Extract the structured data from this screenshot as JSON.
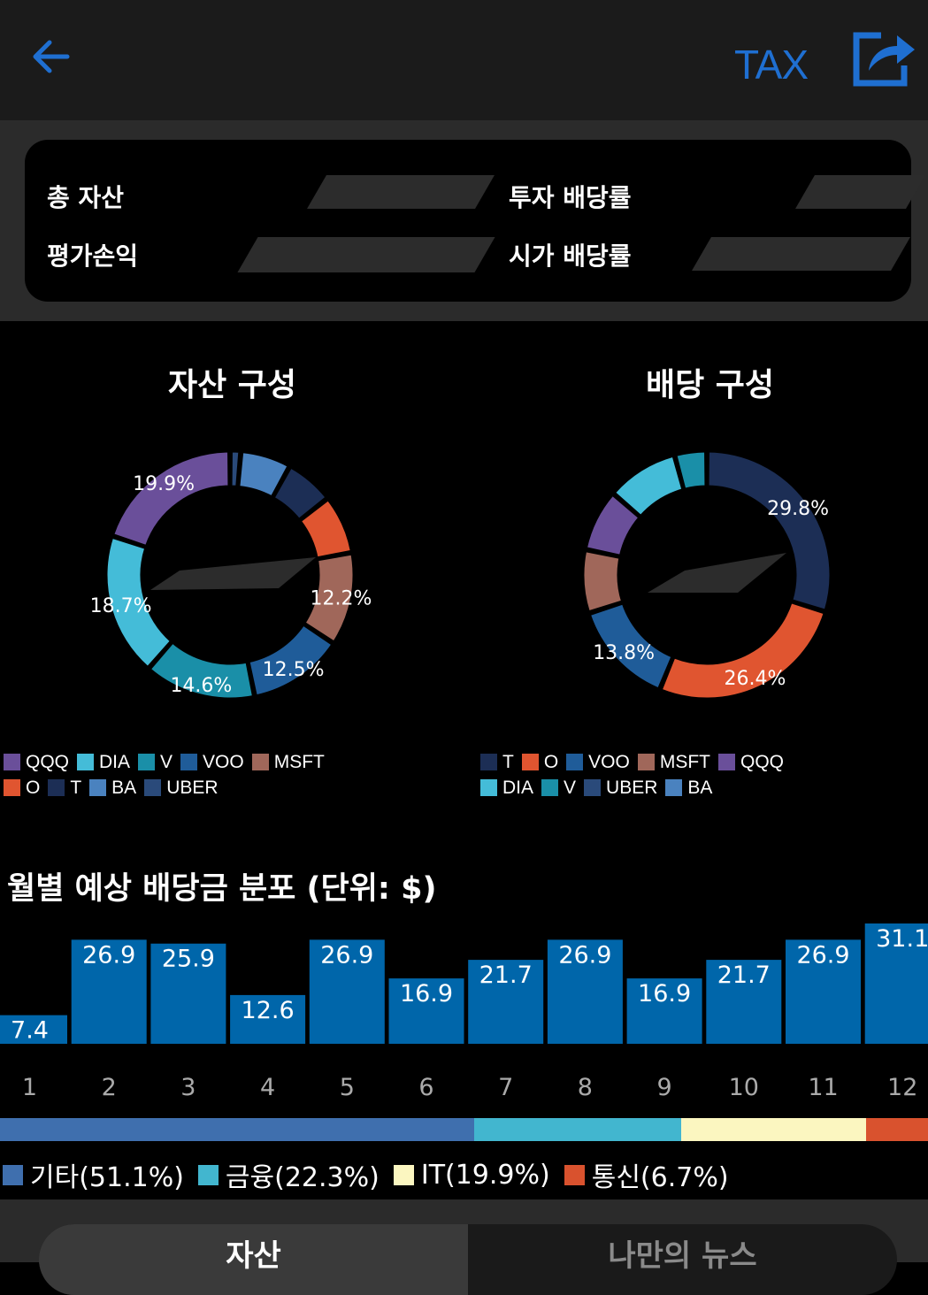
{
  "header": {
    "tax_label": "TAX"
  },
  "summary": {
    "total_assets_label": "총 자산",
    "invest_yield_label": "투자 배당률",
    "pnl_label": "평가손익",
    "market_yield_label": "시가 배당률"
  },
  "asset_pie": {
    "title": "자산 구성",
    "slices": [
      {
        "name": "QQQ",
        "value": 19.9,
        "color": "#6a4f9a",
        "label": "19.9%"
      },
      {
        "name": "DIA",
        "value": 18.7,
        "color": "#44bcd8",
        "label": "18.7%"
      },
      {
        "name": "V",
        "value": 14.6,
        "color": "#1a8fa8",
        "label": "14.6%"
      },
      {
        "name": "VOO",
        "value": 12.5,
        "color": "#1f5c99",
        "label": "12.5%"
      },
      {
        "name": "MSFT",
        "value": 12.2,
        "color": "#a0675a",
        "label": "12.2%"
      },
      {
        "name": "O",
        "value": 7.7,
        "color": "#e05530",
        "label": ""
      },
      {
        "name": "T",
        "value": 6.4,
        "color": "#1c2e55",
        "label": ""
      },
      {
        "name": "BA",
        "value": 6.6,
        "color": "#4a82bf",
        "label": ""
      },
      {
        "name": "UBER",
        "value": 1.4,
        "color": "#2a4a7a",
        "label": ""
      }
    ],
    "legend_rows": [
      [
        "QQQ",
        "DIA",
        "V",
        "VOO",
        "MSFT"
      ],
      [
        "O",
        "T",
        "BA",
        "UBER"
      ]
    ]
  },
  "dividend_pie": {
    "title": "배당 구성",
    "slices": [
      {
        "name": "T",
        "value": 29.8,
        "color": "#1c2e55",
        "label": "29.8%"
      },
      {
        "name": "O",
        "value": 26.4,
        "color": "#e05530",
        "label": "26.4%"
      },
      {
        "name": "VOO",
        "value": 13.8,
        "color": "#1f5c99",
        "label": "13.8%"
      },
      {
        "name": "MSFT",
        "value": 8.3,
        "color": "#a0675a",
        "label": ""
      },
      {
        "name": "QQQ",
        "value": 8.1,
        "color": "#6a4f9a",
        "label": ""
      },
      {
        "name": "DIA",
        "value": 9.4,
        "color": "#44bcd8",
        "label": ""
      },
      {
        "name": "V",
        "value": 4.2,
        "color": "#1a8fa8",
        "label": ""
      },
      {
        "name": "UBER",
        "value": 0.0,
        "color": "#2a4a7a",
        "label": ""
      },
      {
        "name": "BA",
        "value": 0.0,
        "color": "#4a82bf",
        "label": ""
      }
    ],
    "legend_rows": [
      [
        "T",
        "O",
        "VOO",
        "MSFT",
        "QQQ"
      ],
      [
        "DIA",
        "V",
        "UBER",
        "BA"
      ]
    ]
  },
  "chart_data": {
    "type": "bar",
    "title": "월별 예상 배당금 분포 (단위: $)",
    "categories": [
      "1",
      "2",
      "3",
      "4",
      "5",
      "6",
      "7",
      "8",
      "9",
      "10",
      "11",
      "12"
    ],
    "values": [
      7.4,
      26.9,
      25.9,
      12.6,
      26.9,
      16.9,
      21.7,
      26.9,
      16.9,
      21.7,
      26.9,
      31.1
    ],
    "value_labels": [
      "7.4",
      "26.9",
      "25.9",
      "12.6",
      "26.9",
      "16.9",
      "21.7",
      "26.9",
      "16.9",
      "21.7",
      "26.9",
      "31.1"
    ],
    "bar_color": "#0066aa",
    "ylim": [
      0,
      31.1
    ]
  },
  "sectors": [
    {
      "name": "기타",
      "label": "기타(51.1%)",
      "pct": 51.1,
      "color": "#3f6fae"
    },
    {
      "name": "금융",
      "label": "금융(22.3%)",
      "pct": 22.3,
      "color": "#42b6cf"
    },
    {
      "name": "IT",
      "label": "IT(19.9%)",
      "pct": 19.9,
      "color": "#fbf6c0"
    },
    {
      "name": "통신",
      "label": "통신(6.7%)",
      "pct": 6.7,
      "color": "#d9522e"
    }
  ],
  "tabs": {
    "active": "자산",
    "inactive": "나만의 뉴스"
  }
}
